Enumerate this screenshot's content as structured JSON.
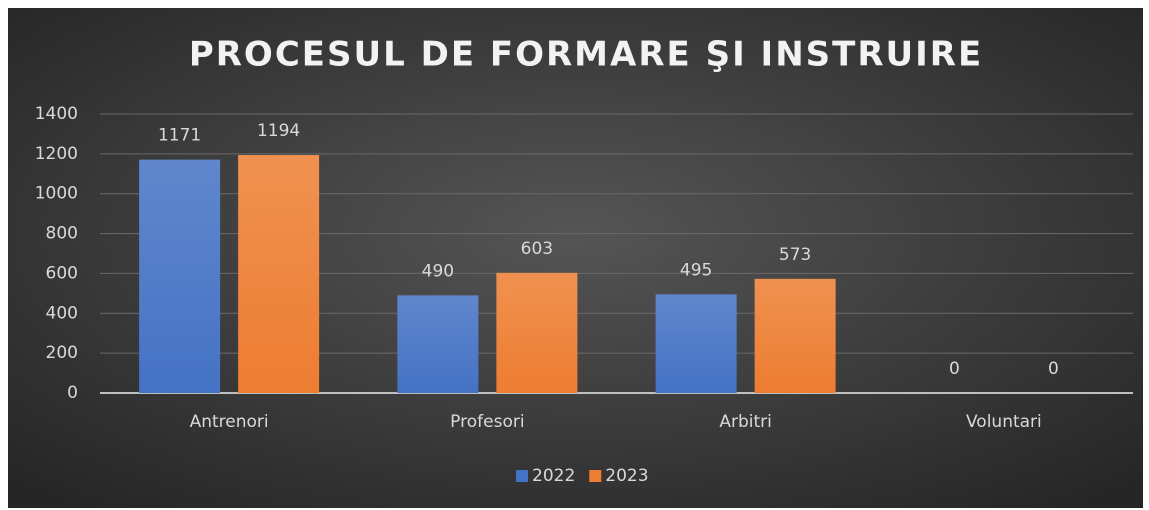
{
  "chart_data": {
    "type": "bar",
    "title": "PROCESUL DE FORMARE ŞI INSTRUIRE",
    "categories": [
      "Antrenori",
      "Profesori",
      "Arbitri",
      "Voluntari"
    ],
    "series": [
      {
        "name": "2022",
        "color": "#4472c4",
        "values": [
          1171,
          490,
          495,
          0
        ]
      },
      {
        "name": "2023",
        "color": "#ed7d31",
        "values": [
          1194,
          603,
          573,
          0
        ]
      }
    ],
    "ylim": [
      0,
      1400
    ],
    "yticks": [
      0,
      200,
      400,
      600,
      800,
      1000,
      1200,
      1400
    ],
    "grid": true,
    "legend": "bottom"
  }
}
